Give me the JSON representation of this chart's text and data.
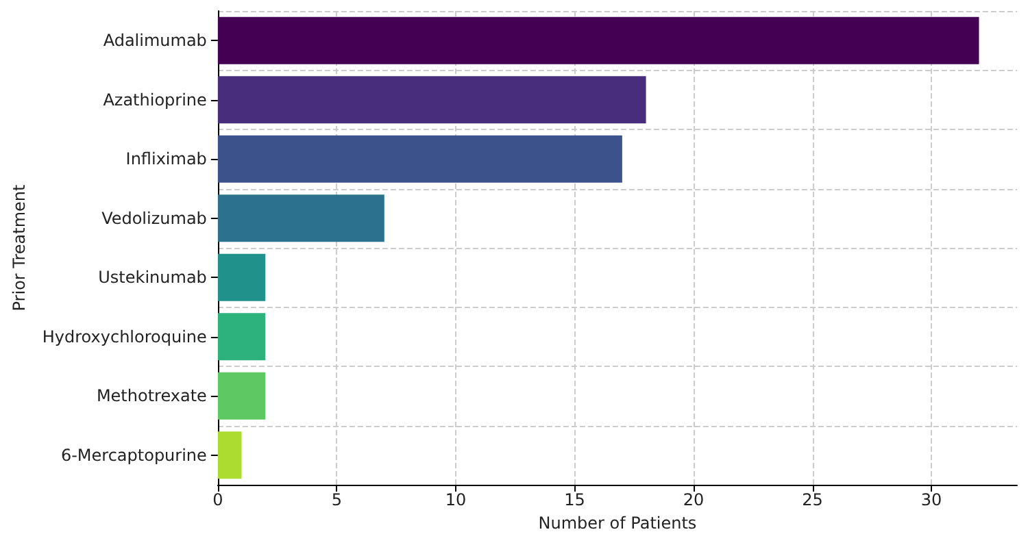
{
  "chart_data": {
    "type": "bar",
    "orientation": "horizontal",
    "xlabel": "Number of Patients",
    "ylabel": "Prior Treatment",
    "categories": [
      "Adalimumab",
      "Azathioprine",
      "Infliximab",
      "Vedolizumab",
      "Ustekinumab",
      "Hydroxychloroquine",
      "Methotrexate",
      "6-Mercaptopurine"
    ],
    "values": [
      32,
      18,
      17,
      7,
      2,
      2,
      2,
      1
    ],
    "colors": [
      "#440154",
      "#472d7b",
      "#3b528b",
      "#2c728e",
      "#21918c",
      "#2db27d",
      "#5ec962",
      "#addc30"
    ],
    "xlim": [
      0,
      33.6
    ],
    "xticks": [
      0,
      5,
      10,
      15,
      20,
      25,
      30
    ],
    "grid": true
  }
}
